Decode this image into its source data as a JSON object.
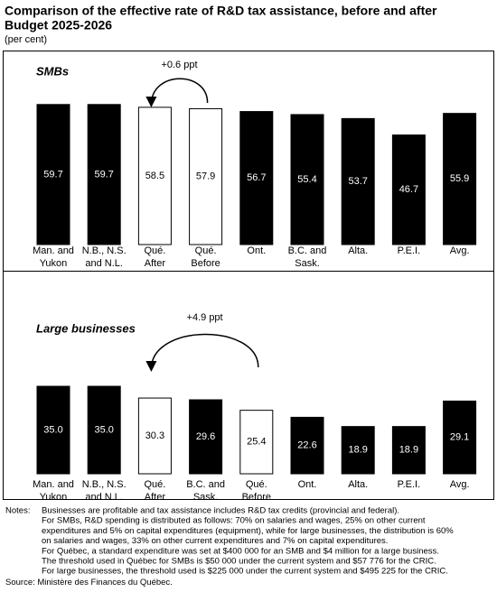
{
  "header": {
    "title": [
      "Comparison of the effective rate of R&D tax assistance, before and after",
      "Budget 2025-2026"
    ],
    "subtitle": "(per cent)"
  },
  "chart_data": [
    {
      "type": "bar",
      "title": "SMBs",
      "annotation": "+0.6 ppt",
      "categories": [
        "Man. and\nYukon",
        "N.B., N.S.\nand N.L.",
        "Qué.\nAfter",
        "Qué.\nBefore",
        "Ont.",
        "B.C. and\nSask.",
        "Alta.",
        "P.E.I.",
        "Avg."
      ],
      "values": [
        59.7,
        59.7,
        58.5,
        57.9,
        56.7,
        55.4,
        53.7,
        46.7,
        55.9
      ],
      "value_labels": [
        "59.7",
        "59.7",
        "58.5",
        "57.9",
        "56.7",
        "55.4",
        "53.7",
        "46.7",
        "55.9"
      ],
      "colors": [
        "#000000",
        "#000000",
        "#ffffff",
        "#ffffff",
        "#000000",
        "#000000",
        "#000000",
        "#000000",
        "#000000"
      ]
    },
    {
      "type": "bar",
      "title": "Large businesses",
      "annotation": "+4.9 ppt",
      "categories": [
        "Man. and\nYukon",
        "N.B., N.S.\nand N.L.",
        "Qué.\nAfter",
        "B.C. and\nSask.",
        "Qué.\nBefore",
        "Ont.",
        "Alta.",
        "P.E.I.",
        "Avg."
      ],
      "values": [
        35.0,
        35.0,
        30.3,
        29.6,
        25.4,
        22.6,
        18.9,
        18.9,
        29.1
      ],
      "value_labels": [
        "35.0",
        "35.0",
        "30.3",
        "29.6",
        "25.4",
        "22.6",
        "18.9",
        "18.9",
        "29.1"
      ],
      "colors": [
        "#000000",
        "#000000",
        "#ffffff",
        "#000000",
        "#ffffff",
        "#000000",
        "#000000",
        "#000000",
        "#000000"
      ]
    }
  ],
  "notes": {
    "label": "Notes:",
    "lines": [
      "Businesses are profitable and tax assistance includes R&D tax credits (provincial and federal).",
      "For SMBs, R&D spending is distributed as follows: 70% on salaries and wages, 25% on other current",
      "expenditures and 5% on capital expenditures (equipment), while for large businesses, the distribution is 60%",
      "on salaries and wages, 33% on other current expenditures and 7% on capital expenditures.",
      "For Québec, a standard expenditure was set at $400 000 for an SMB and $4 million for a large business.",
      "The threshold used in Québec for SMBs is $50 000 under the current system and $57 776 for the CRIC.",
      "For large businesses, the threshold used is $225 000 under the current system and $495 225 for the CRIC."
    ]
  },
  "source": "Source:  Ministère des Finances du Québec."
}
